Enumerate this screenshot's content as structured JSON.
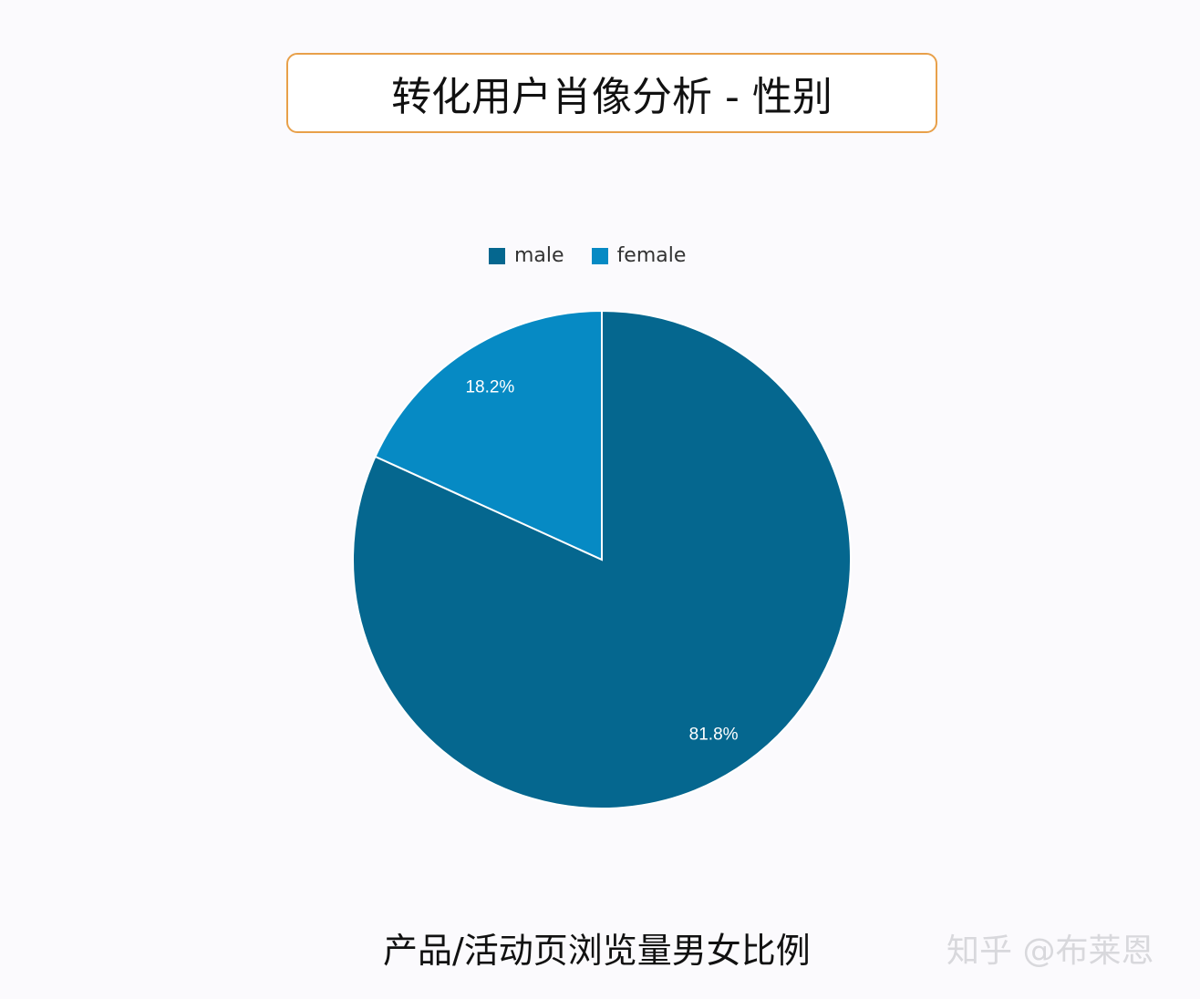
{
  "title": "转化用户肖像分析 - 性别",
  "caption": "产品/活动页浏览量男女比例",
  "watermark": "知乎 @布莱恩",
  "chart_data": {
    "type": "pie",
    "categories": [
      "male",
      "female"
    ],
    "values": [
      81.8,
      18.2
    ],
    "data_labels": [
      "81.8%",
      "18.2%"
    ],
    "colors": [
      "#05678f",
      "#068ac4"
    ],
    "legend_position": "top",
    "start_angle": "12 o'clock, male clockwise"
  }
}
